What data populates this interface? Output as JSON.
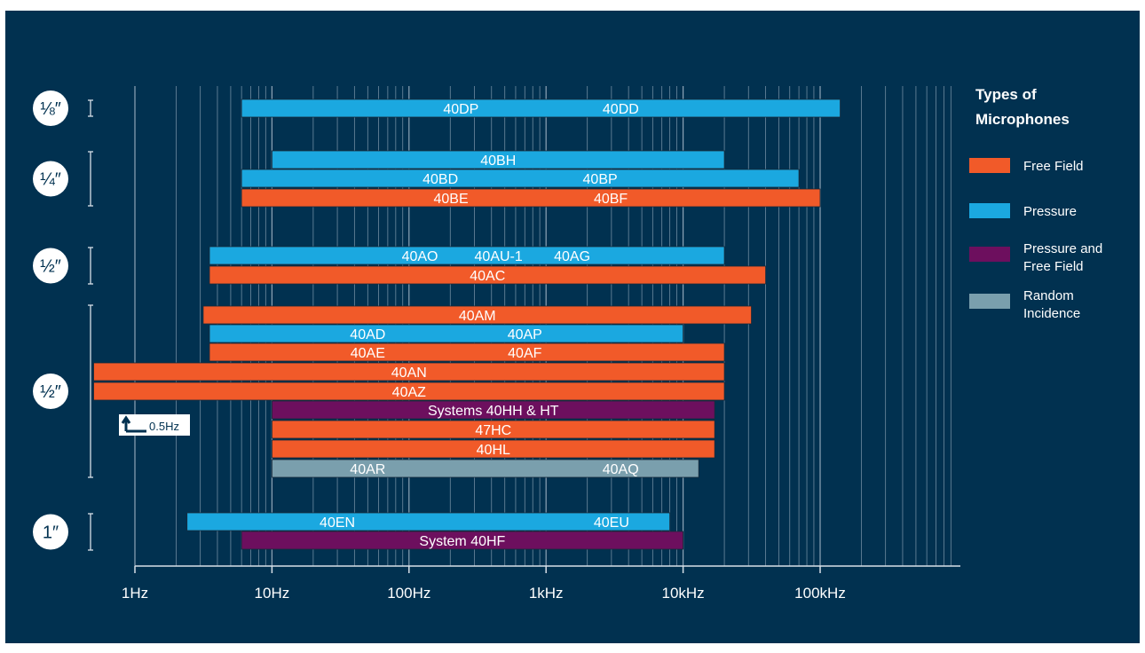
{
  "chart_data": {
    "type": "bar",
    "orientation": "horizontal-range",
    "x_scale": "log",
    "xlim": [
      1,
      1000000
    ],
    "x_ticks": [
      {
        "value": 1,
        "label": "1Hz"
      },
      {
        "value": 10,
        "label": "10Hz"
      },
      {
        "value": 100,
        "label": "100Hz"
      },
      {
        "value": 1000,
        "label": "1kHz"
      },
      {
        "value": 10000,
        "label": "10kHz"
      },
      {
        "value": 100000,
        "label": "100kHz"
      }
    ],
    "grid": true,
    "legend": {
      "title": "Types of Microphones",
      "placement": "right",
      "entries": [
        {
          "key": "free_field",
          "label": "Free Field",
          "color": "#F15A29"
        },
        {
          "key": "pressure",
          "label": "Pressure",
          "color": "#1BA8E0"
        },
        {
          "key": "pressure_free",
          "label": "Pressure and Free Field",
          "color": "#6D0F5E"
        },
        {
          "key": "random",
          "label": "Random Incidence",
          "color": "#7A9FAD"
        }
      ]
    },
    "groups": [
      {
        "label": "1/8\"",
        "display": "⅛″",
        "rows": [
          0
        ]
      },
      {
        "label": "1/4\"",
        "display": "¼″",
        "rows": [
          1,
          2,
          3
        ]
      },
      {
        "label": "1/2\"",
        "display": "½″",
        "rows": [
          4,
          5
        ]
      },
      {
        "label": "1/2\"",
        "display": "½″",
        "rows": [
          6,
          7,
          8,
          9,
          10,
          11,
          12,
          13,
          14
        ]
      },
      {
        "label": "1\"",
        "display": "1″",
        "rows": [
          15,
          16
        ]
      }
    ],
    "bars": [
      {
        "labels": [
          "40DP",
          "40DD"
        ],
        "x_start": 6,
        "x_end": 140000,
        "type": "pressure"
      },
      {
        "labels": [
          "40BH"
        ],
        "x_start": 10,
        "x_end": 20000,
        "type": "pressure"
      },
      {
        "labels": [
          "40BD",
          "40BP"
        ],
        "x_start": 6,
        "x_end": 70000,
        "type": "pressure"
      },
      {
        "labels": [
          "40BE",
          "40BF"
        ],
        "x_start": 6,
        "x_end": 100000,
        "type": "free_field"
      },
      {
        "labels": [
          "40AO",
          "40AU-1",
          "40AG"
        ],
        "x_start": 3.5,
        "x_end": 20000,
        "type": "pressure"
      },
      {
        "labels": [
          "40AC"
        ],
        "x_start": 3.5,
        "x_end": 40000,
        "type": "free_field"
      },
      {
        "labels": [
          "40AM"
        ],
        "x_start": 3.15,
        "x_end": 31500,
        "type": "free_field"
      },
      {
        "labels": [
          "40AD",
          "40AP"
        ],
        "x_start": 3.5,
        "x_end": 10000,
        "type": "pressure"
      },
      {
        "labels": [
          "40AE",
          "40AF"
        ],
        "x_start": 3.5,
        "x_end": 20000,
        "type": "free_field"
      },
      {
        "labels": [
          "40AN"
        ],
        "x_start": 0.5,
        "x_end": 20000,
        "type": "free_field"
      },
      {
        "labels": [
          "40AZ"
        ],
        "x_start": 0.5,
        "x_end": 20000,
        "type": "free_field"
      },
      {
        "labels": [
          "Systems 40HH & HT"
        ],
        "x_start": 10,
        "x_end": 17000,
        "type": "pressure_free"
      },
      {
        "labels": [
          "47HC"
        ],
        "x_start": 10,
        "x_end": 17000,
        "type": "free_field"
      },
      {
        "labels": [
          "40HL"
        ],
        "x_start": 10,
        "x_end": 17000,
        "type": "free_field"
      },
      {
        "labels": [
          "40AR",
          "40AQ"
        ],
        "x_start": 10,
        "x_end": 13000,
        "type": "random"
      },
      {
        "labels": [
          "40EN",
          "40EU"
        ],
        "x_start": 2.4,
        "x_end": 8000,
        "type": "pressure"
      },
      {
        "labels": [
          "System 40HF"
        ],
        "x_start": 6,
        "x_end": 10000,
        "type": "pressure_free"
      }
    ],
    "annotations": [
      {
        "text": "0.5Hz",
        "note_for_rows": [
          9,
          10
        ]
      }
    ]
  },
  "colors": {
    "background": "#013150",
    "grid": "#9EB1C2",
    "axis": "#D8E0E8",
    "text": "#FFFFFF",
    "badge_bg": "#FFFFFF",
    "badge_text": "#013150"
  },
  "legend_title_lines": [
    "Types of",
    "Microphones"
  ],
  "legend_label_lines": [
    [
      "Free Field"
    ],
    [
      "Pressure"
    ],
    [
      "Pressure and",
      "Free Field"
    ],
    [
      "Random",
      "Incidence"
    ]
  ],
  "annotation_text": "0.5Hz"
}
